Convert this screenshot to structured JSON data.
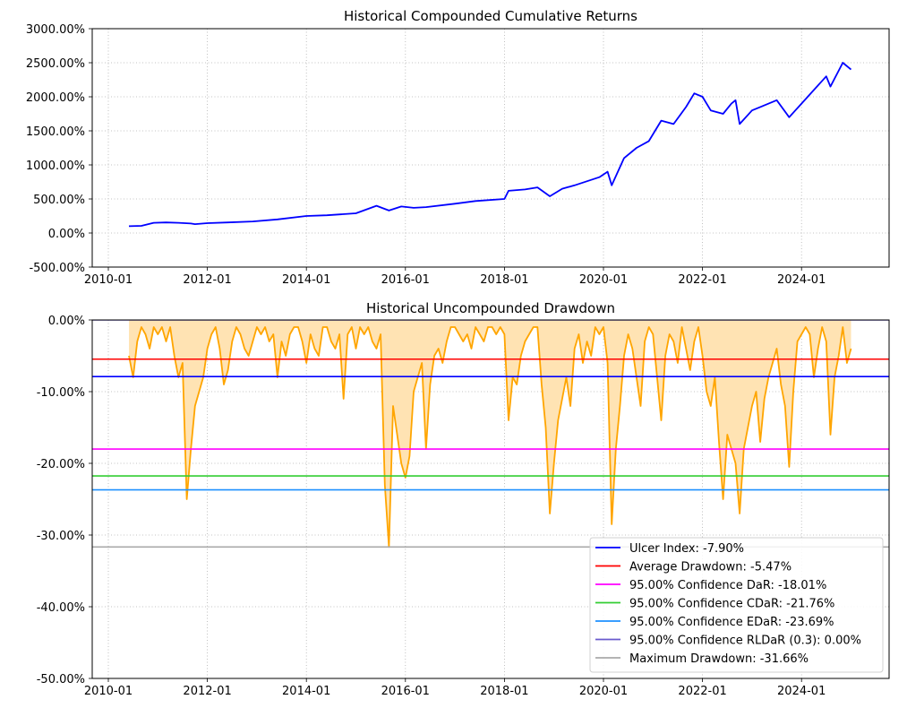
{
  "chart_data": [
    {
      "type": "line",
      "title": "Historical Compounded Cumulative Returns",
      "xlabel": "",
      "ylabel": "",
      "ylim": [
        -500,
        3000
      ],
      "xlim": [
        "2009-09",
        "2025-10"
      ],
      "yticks": [
        -500,
        0,
        500,
        1000,
        1500,
        2000,
        2500,
        3000
      ],
      "ytick_labels": [
        "-500.00%",
        "0.00%",
        "500.00%",
        "1000.00%",
        "1500.00%",
        "2000.00%",
        "2500.00%",
        "3000.00%"
      ],
      "xtick_labels": [
        "2010-01",
        "2012-01",
        "2014-01",
        "2016-01",
        "2018-01",
        "2020-01",
        "2022-01",
        "2024-01"
      ],
      "grid": true,
      "series": [
        {
          "name": "Cumulative Returns",
          "color": "#0000ff",
          "x": [
            "2010-06",
            "2010-09",
            "2010-12",
            "2011-03",
            "2011-06",
            "2011-09",
            "2011-10",
            "2012-01",
            "2012-06",
            "2012-12",
            "2013-06",
            "2014-01",
            "2014-06",
            "2015-01",
            "2015-06",
            "2015-09",
            "2015-12",
            "2016-03",
            "2016-06",
            "2017-01",
            "2017-06",
            "2018-01",
            "2018-02",
            "2018-06",
            "2018-09",
            "2018-12",
            "2019-03",
            "2019-06",
            "2019-12",
            "2020-02",
            "2020-03",
            "2020-06",
            "2020-09",
            "2020-12",
            "2021-03",
            "2021-06",
            "2021-09",
            "2021-11",
            "2022-01",
            "2022-03",
            "2022-06",
            "2022-08",
            "2022-09",
            "2022-10",
            "2023-01",
            "2023-03",
            "2023-07",
            "2023-10",
            "2024-01",
            "2024-04",
            "2024-07",
            "2024-08",
            "2024-11",
            "2025-01"
          ],
          "values": [
            100,
            105,
            150,
            155,
            150,
            140,
            130,
            145,
            155,
            170,
            200,
            250,
            260,
            290,
            400,
            330,
            390,
            370,
            380,
            430,
            470,
            500,
            620,
            640,
            670,
            540,
            650,
            700,
            820,
            900,
            700,
            1100,
            1250,
            1350,
            1650,
            1600,
            1850,
            2050,
            2000,
            1800,
            1750,
            1900,
            1950,
            1600,
            1800,
            1850,
            1950,
            1700,
            1900,
            2100,
            2300,
            2150,
            2500,
            2400
          ]
        }
      ]
    },
    {
      "type": "area",
      "title": "Historical Uncompounded Drawdown",
      "xlabel": "",
      "ylabel": "",
      "ylim": [
        -50,
        0
      ],
      "xlim": [
        "2009-09",
        "2025-10"
      ],
      "yticks": [
        -50,
        -40,
        -30,
        -20,
        -10,
        0
      ],
      "ytick_labels": [
        "-50.00%",
        "-40.00%",
        "-30.00%",
        "-20.00%",
        "-10.00%",
        "0.00%"
      ],
      "xtick_labels": [
        "2010-01",
        "2012-01",
        "2014-01",
        "2016-01",
        "2018-01",
        "2020-01",
        "2022-01",
        "2024-01"
      ],
      "grid": true,
      "legend_position": "lower-right",
      "series": [
        {
          "name": "Drawdown",
          "color": "#ffa500",
          "fill": "#ffe3b3",
          "start": "2010-06",
          "step": "monthly",
          "values": [
            -5,
            -8,
            -3,
            -1,
            -2,
            -4,
            -1,
            -2,
            -1,
            -3,
            -1,
            -5,
            -8,
            -6,
            -25,
            -18,
            -12,
            -10,
            -8,
            -4,
            -2,
            -1,
            -4,
            -9,
            -7,
            -3,
            -1,
            -2,
            -4,
            -5,
            -3,
            -1,
            -2,
            -1,
            -3,
            -2,
            -8,
            -3,
            -5,
            -2,
            -1,
            -1,
            -3,
            -6,
            -2,
            -4,
            -5,
            -1,
            -1,
            -3,
            -4,
            -2,
            -11,
            -2,
            -1,
            -4,
            -1,
            -2,
            -1,
            -3,
            -4,
            -2,
            -23,
            -31.66,
            -12,
            -16,
            -20,
            -22,
            -19,
            -10,
            -8,
            -6,
            -18,
            -9,
            -5,
            -4,
            -6,
            -3,
            -1,
            -1,
            -2,
            -3,
            -2,
            -4,
            -1,
            -2,
            -3,
            -1,
            -1,
            -2,
            -1,
            -2,
            -14,
            -8,
            -9,
            -5,
            -3,
            -2,
            -1,
            -1,
            -9,
            -15,
            -27,
            -20,
            -14,
            -11,
            -8,
            -12,
            -4,
            -2,
            -6,
            -3,
            -5,
            -1,
            -2,
            -1,
            -6,
            -28.5,
            -18,
            -12,
            -5,
            -2,
            -4,
            -8,
            -12,
            -3,
            -1,
            -2,
            -8,
            -14,
            -5,
            -2,
            -3,
            -6,
            -1,
            -4,
            -7,
            -3,
            -1,
            -5,
            -10,
            -12,
            -8,
            -17,
            -25,
            -16,
            -18,
            -20,
            -27,
            -18,
            -15,
            -12,
            -10,
            -17,
            -11,
            -8,
            -6,
            -4,
            -9,
            -12,
            -20.5,
            -10,
            -3,
            -2,
            -1,
            -2,
            -8,
            -4,
            -1,
            -3,
            -16,
            -8,
            -5,
            -1,
            -6,
            -4
          ]
        }
      ],
      "reference_lines": [
        {
          "label": "Ulcer Index: -7.90%",
          "value": -7.9,
          "color": "#0000ff"
        },
        {
          "label": "Average Drawdown: -5.47%",
          "value": -5.47,
          "color": "#ff0000"
        },
        {
          "label": "95.00% Confidence DaR: -18.01%",
          "value": -18.01,
          "color": "#ff00ff"
        },
        {
          "label": "95.00% Confidence CDaR: -21.76%",
          "value": -21.76,
          "color": "#32cd32"
        },
        {
          "label": "95.00% Confidence EDaR: -23.69%",
          "value": -23.69,
          "color": "#1e90ff"
        },
        {
          "label": "95.00% Confidence RLDaR (0.3): 0.00%",
          "value": 0.0,
          "color": "#6a5acd"
        },
        {
          "label": "Maximum Drawdown: -31.66%",
          "value": -31.66,
          "color": "#a9a9a9"
        }
      ]
    }
  ]
}
